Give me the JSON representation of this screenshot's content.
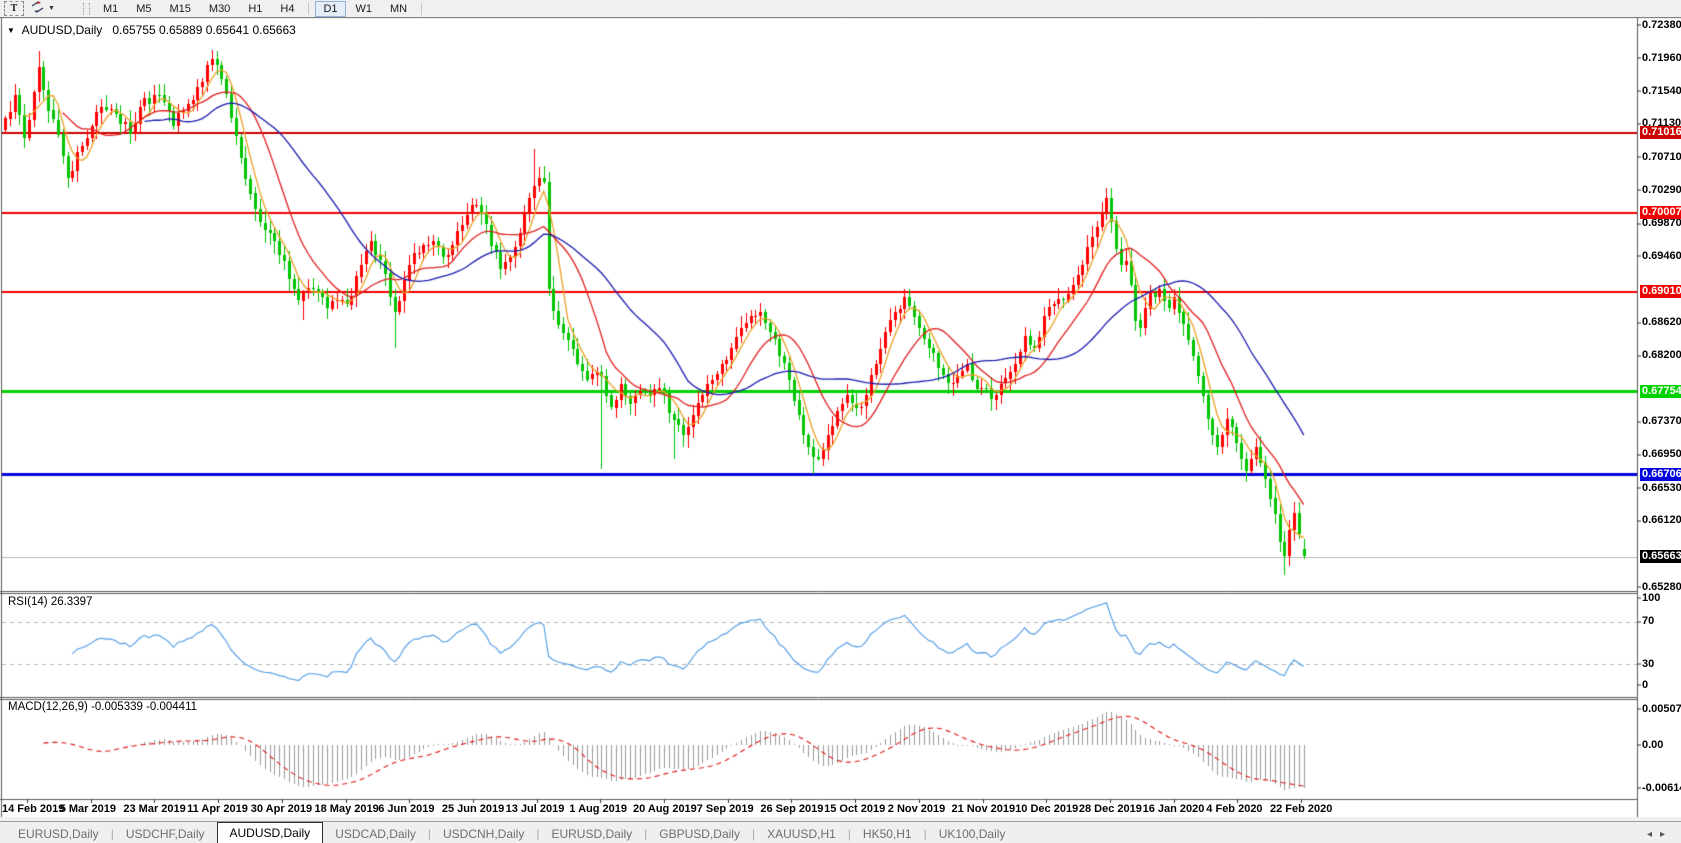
{
  "toolbar": {
    "text_tool_label": "T",
    "timeframe_groups": [
      [
        "M1",
        "M5",
        "M15",
        "M30",
        "H1",
        "H4"
      ],
      [
        "D1",
        "W1",
        "MN"
      ]
    ],
    "active_timeframe": "D1"
  },
  "chart": {
    "title_symbol": "AUDUSD,Daily",
    "title_ohlc": "0.65755 0.65889 0.65641 0.65663",
    "price_ticks": [
      "0.72380",
      "0.71960",
      "0.71540",
      "0.71130",
      "0.70710",
      "0.70290",
      "0.69870",
      "0.69460",
      "0.68620",
      "0.68200",
      "0.67370",
      "0.66950",
      "0.66530",
      "0.66120",
      "0.65280"
    ],
    "levels": [
      {
        "label": "0.71016",
        "price": 0.71016,
        "color": "#cc0000",
        "width": 2
      },
      {
        "label": "0.70007",
        "price": 0.70007,
        "color": "#f00000",
        "width": 2
      },
      {
        "label": "0.69010",
        "price": 0.6901,
        "color": "#f00000",
        "width": 2
      },
      {
        "label": "0.67754",
        "price": 0.67754,
        "color": "#00d200",
        "width": 3
      },
      {
        "label": "0.66706",
        "price": 0.66706,
        "color": "#0000e0",
        "width": 3
      }
    ],
    "current_price": {
      "label": "0.65663",
      "price": 0.65663,
      "line_color": "#b8b8b8",
      "label_bg": "#000000"
    },
    "date_ticks": [
      "14 Feb 2019",
      "5 Mar 2019",
      "23 Mar 2019",
      "11 Apr 2019",
      "30 Apr 2019",
      "18 May 2019",
      "6 Jun 2019",
      "25 Jun 2019",
      "13 Jul 2019",
      "1 Aug 2019",
      "20 Aug 2019",
      "7 Sep 2019",
      "26 Sep 2019",
      "15 Oct 2019",
      "2 Nov 2019",
      "21 Nov 2019",
      "10 Dec 2019",
      "28 Dec 2019",
      "16 Jan 2020",
      "4 Feb 2020",
      "22 Feb 2020"
    ]
  },
  "indicators": {
    "rsi": {
      "label": "RSI(14) 26.3397",
      "axis_values": [
        100,
        70,
        30,
        0
      ],
      "axis_labels": [
        "100",
        "70",
        "30",
        "0"
      ]
    },
    "macd": {
      "label": "MACD(12,26,9) -0.005339 -0.004411",
      "axis": [
        {
          "label": "0.005076",
          "v": 0.005076
        },
        {
          "label": "0.00",
          "v": 0
        },
        {
          "label": "-0.006148",
          "v": -0.006148
        }
      ]
    }
  },
  "tabs": {
    "items": [
      "EURUSD,Daily",
      "USDCHF,Daily",
      "AUDUSD,Daily",
      "USDCAD,Daily",
      "USDCNH,Daily",
      "EURUSD,Daily",
      "GBPUSD,Daily",
      "XAUUSD,H1",
      "HK50,H1",
      "UK100,Daily"
    ],
    "active_index": 2,
    "scroll_left": "◂",
    "scroll_right": "▸"
  },
  "chart_data": {
    "type": "candlestick",
    "symbol": "AUDUSD",
    "timeframe": "Daily",
    "convention": "red-up-green-down",
    "bull_color": "#ff0000",
    "bear_color": "#00c400",
    "price_range": [
      0.6528,
      0.7238
    ],
    "candle_count": 271,
    "last_candle": {
      "open": 0.65755,
      "high": 0.65889,
      "low": 0.65641,
      "close": 0.65663
    },
    "close_waypoints": [
      [
        0,
        0.712
      ],
      [
        2,
        0.715
      ],
      [
        4,
        0.7095
      ],
      [
        7,
        0.7185
      ],
      [
        9,
        0.713
      ],
      [
        11,
        0.71
      ],
      [
        13,
        0.7045
      ],
      [
        16,
        0.7085
      ],
      [
        18,
        0.711
      ],
      [
        20,
        0.7135
      ],
      [
        23,
        0.7125
      ],
      [
        26,
        0.71
      ],
      [
        28,
        0.7135
      ],
      [
        31,
        0.715
      ],
      [
        33,
        0.714
      ],
      [
        35,
        0.711
      ],
      [
        37,
        0.713
      ],
      [
        40,
        0.716
      ],
      [
        43,
        0.7195
      ],
      [
        45,
        0.717
      ],
      [
        47,
        0.712
      ],
      [
        49,
        0.707
      ],
      [
        52,
        0.7005
      ],
      [
        55,
        0.6975
      ],
      [
        58,
        0.694
      ],
      [
        61,
        0.689
      ],
      [
        64,
        0.6905
      ],
      [
        67,
        0.688
      ],
      [
        69,
        0.689
      ],
      [
        71,
        0.6885
      ],
      [
        74,
        0.6935
      ],
      [
        76,
        0.6965
      ],
      [
        78,
        0.694
      ],
      [
        81,
        0.6875
      ],
      [
        84,
        0.6935
      ],
      [
        87,
        0.696
      ],
      [
        89,
        0.6965
      ],
      [
        91,
        0.6945
      ],
      [
        93,
        0.696
      ],
      [
        95,
        0.6985
      ],
      [
        97,
        0.701
      ],
      [
        99,
        0.7
      ],
      [
        101,
        0.696
      ],
      [
        103,
        0.693
      ],
      [
        105,
        0.6945
      ],
      [
        107,
        0.6975
      ],
      [
        109,
        0.702
      ],
      [
        110,
        0.7035
      ],
      [
        111,
        0.7045
      ],
      [
        112,
        0.704
      ],
      [
        113,
        0.6905
      ],
      [
        115,
        0.686
      ],
      [
        117,
        0.684
      ],
      [
        119,
        0.681
      ],
      [
        121,
        0.679
      ],
      [
        123,
        0.68
      ],
      [
        124,
        0.6795
      ],
      [
        126,
        0.6755
      ],
      [
        128,
        0.6785
      ],
      [
        130,
        0.676
      ],
      [
        132,
        0.6775
      ],
      [
        134,
        0.677
      ],
      [
        136,
        0.678
      ],
      [
        139,
        0.674
      ],
      [
        141,
        0.672
      ],
      [
        143,
        0.6745
      ],
      [
        145,
        0.677
      ],
      [
        147,
        0.679
      ],
      [
        150,
        0.6815
      ],
      [
        153,
        0.6855
      ],
      [
        155,
        0.687
      ],
      [
        157,
        0.6875
      ],
      [
        159,
        0.685
      ],
      [
        161,
        0.682
      ],
      [
        163,
        0.679
      ],
      [
        165,
        0.6745
      ],
      [
        167,
        0.6705
      ],
      [
        169,
        0.669
      ],
      [
        171,
        0.672
      ],
      [
        173,
        0.675
      ],
      [
        175,
        0.677
      ],
      [
        177,
        0.6755
      ],
      [
        179,
        0.677
      ],
      [
        181,
        0.681
      ],
      [
        183,
        0.685
      ],
      [
        185,
        0.6875
      ],
      [
        187,
        0.6895
      ],
      [
        189,
        0.687
      ],
      [
        190,
        0.6855
      ],
      [
        192,
        0.683
      ],
      [
        194,
        0.6805
      ],
      [
        196,
        0.6785
      ],
      [
        198,
        0.6795
      ],
      [
        200,
        0.681
      ],
      [
        201,
        0.679
      ],
      [
        203,
        0.678
      ],
      [
        205,
        0.6765
      ],
      [
        207,
        0.6785
      ],
      [
        209,
        0.68
      ],
      [
        211,
        0.6825
      ],
      [
        212,
        0.6845
      ],
      [
        214,
        0.683
      ],
      [
        216,
        0.687
      ],
      [
        218,
        0.6885
      ],
      [
        220,
        0.689
      ],
      [
        222,
        0.691
      ],
      [
        224,
        0.6935
      ],
      [
        226,
        0.697
      ],
      [
        228,
        0.7
      ],
      [
        229,
        0.702
      ],
      [
        230,
        0.699
      ],
      [
        231,
        0.6955
      ],
      [
        232,
        0.6935
      ],
      [
        233,
        0.694
      ],
      [
        234,
        0.691
      ],
      [
        235,
        0.6865
      ],
      [
        236,
        0.6855
      ],
      [
        237,
        0.688
      ],
      [
        238,
        0.69
      ],
      [
        239,
        0.6895
      ],
      [
        240,
        0.6905
      ],
      [
        241,
        0.689
      ],
      [
        242,
        0.688
      ],
      [
        243,
        0.6895
      ],
      [
        244,
        0.6875
      ],
      [
        245,
        0.686
      ],
      [
        246,
        0.684
      ],
      [
        247,
        0.682
      ],
      [
        248,
        0.6795
      ],
      [
        249,
        0.677
      ],
      [
        250,
        0.674
      ],
      [
        251,
        0.672
      ],
      [
        252,
        0.6705
      ],
      [
        253,
        0.672
      ],
      [
        254,
        0.674
      ],
      [
        255,
        0.673
      ],
      [
        256,
        0.671
      ],
      [
        257,
        0.669
      ],
      [
        258,
        0.6675
      ],
      [
        259,
        0.669
      ],
      [
        260,
        0.6705
      ],
      [
        261,
        0.6685
      ],
      [
        262,
        0.6665
      ],
      [
        263,
        0.664
      ],
      [
        264,
        0.662
      ],
      [
        265,
        0.6585
      ],
      [
        266,
        0.6567
      ],
      [
        267,
        0.66
      ],
      [
        268,
        0.6622
      ],
      [
        269,
        0.6595
      ],
      [
        270,
        0.65663
      ]
    ],
    "wick_overrides": {
      "7": {
        "h": 0.7205
      },
      "43": {
        "h": 0.7206
      },
      "62": {
        "l": 0.6865
      },
      "81": {
        "l": 0.683
      },
      "110": {
        "h": 0.7081
      },
      "124": {
        "l": 0.6677
      },
      "139": {
        "l": 0.669
      },
      "168": {
        "l": 0.66703
      },
      "229": {
        "h": 0.7032
      },
      "266": {
        "l": 0.6543
      }
    },
    "moving_averages": [
      {
        "type": "sma",
        "period": 5,
        "color": "#eda128"
      },
      {
        "type": "sma",
        "period": 13,
        "color": "#e02020"
      },
      {
        "type": "sma",
        "period": 30,
        "color": "#1c1cb0"
      }
    ],
    "rsi": {
      "period": 14,
      "color": "#4d9be6",
      "levels": [
        70,
        30
      ],
      "range": [
        0,
        100
      ],
      "last_value": 26.3397
    },
    "macd": {
      "fast": 12,
      "slow": 26,
      "signal": 9,
      "histogram_color": "#9b9b9b",
      "signal_color": "#e01818",
      "last_macd": -0.005339,
      "last_signal": -0.004411
    }
  }
}
